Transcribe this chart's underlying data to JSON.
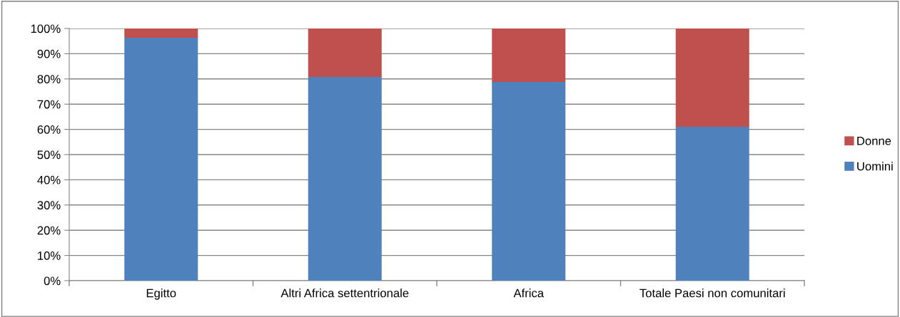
{
  "chart_data": {
    "type": "bar",
    "stacked": true,
    "categories": [
      "Egitto",
      "Altri Africa settentrionale",
      "Africa",
      "Totale Paesi non comunitari"
    ],
    "series": [
      {
        "name": "Uomini",
        "color": "#4f81bd",
        "values": [
          96.3,
          80.8,
          78.8,
          61.0
        ]
      },
      {
        "name": "Donne",
        "color": "#c0504d",
        "values": [
          3.7,
          19.2,
          21.2,
          39.0
        ]
      }
    ],
    "ylim": [
      0,
      100
    ],
    "yticks": [
      {
        "value": 0,
        "label": "0%"
      },
      {
        "value": 10,
        "label": "10%"
      },
      {
        "value": 20,
        "label": "20%"
      },
      {
        "value": 30,
        "label": "30%"
      },
      {
        "value": 40,
        "label": "40%"
      },
      {
        "value": 50,
        "label": "50%"
      },
      {
        "value": 60,
        "label": "60%"
      },
      {
        "value": 70,
        "label": "70%"
      },
      {
        "value": 80,
        "label": "80%"
      },
      {
        "value": 90,
        "label": "90%"
      },
      {
        "value": 100,
        "label": "100%"
      }
    ],
    "grid": "y",
    "legend": "right"
  }
}
